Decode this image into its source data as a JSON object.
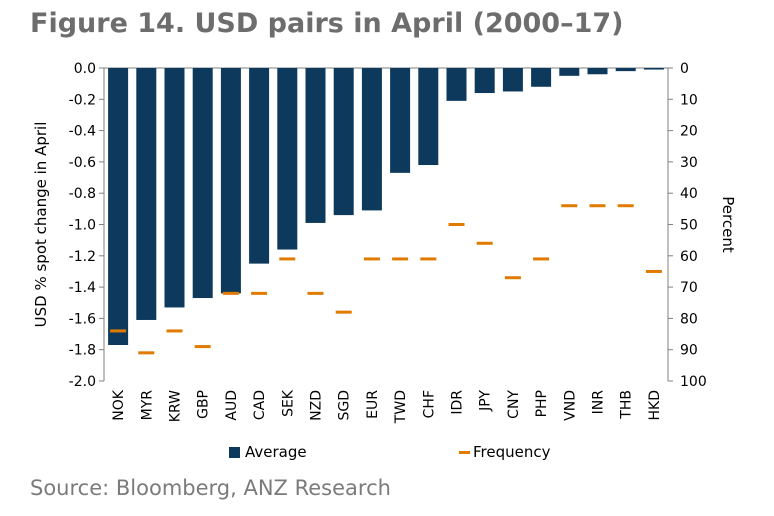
{
  "figure": {
    "title": "Figure 14.   USD pairs in April (2000–17)",
    "source": "Source: Bloomberg, ANZ Research"
  },
  "chart_data": {
    "type": "bar",
    "title": "Figure 14.   USD pairs in April (2000–17)",
    "categories": [
      "NOK",
      "MYR",
      "KRW",
      "GBP",
      "AUD",
      "CAD",
      "SEK",
      "NZD",
      "SGD",
      "EUR",
      "TWD",
      "CHF",
      "IDR",
      "JPY",
      "CNY",
      "PHP",
      "VND",
      "INR",
      "THB",
      "HKD"
    ],
    "series": [
      {
        "name": "Average",
        "type": "bar",
        "axis": "left",
        "color": "#0d3a5c",
        "values": [
          -1.77,
          -1.61,
          -1.53,
          -1.47,
          -1.44,
          -1.25,
          -1.16,
          -0.99,
          -0.94,
          -0.91,
          -0.67,
          -0.62,
          -0.21,
          -0.16,
          -0.15,
          -0.12,
          -0.05,
          -0.04,
          -0.02,
          -0.01
        ]
      },
      {
        "name": "Frequency",
        "type": "marker",
        "axis": "right",
        "color": "#e07b00",
        "values": [
          84,
          91,
          84,
          89,
          72,
          72,
          61,
          72,
          78,
          61,
          61,
          61,
          50,
          56,
          67,
          61,
          44,
          44,
          44,
          65
        ]
      }
    ],
    "ylabel_left": "USD % spot change in April",
    "ylabel_right": "Percent",
    "ylim_left": [
      -2.0,
      0.0
    ],
    "ylim_right": [
      0,
      100
    ],
    "yticks_left": [
      "0.0",
      "-0.2",
      "-0.4",
      "-0.6",
      "-0.8",
      "-1.0",
      "-1.2",
      "-1.4",
      "-1.6",
      "-1.8",
      "-2.0"
    ],
    "yticks_right": [
      "0",
      "10",
      "20",
      "30",
      "40",
      "50",
      "60",
      "70",
      "80",
      "90",
      "100"
    ],
    "legend": [
      {
        "label": "Average",
        "marker": "square",
        "color": "#0d3a5c"
      },
      {
        "label": "Frequency",
        "marker": "dash",
        "color": "#e07b00"
      }
    ],
    "legend_position": "bottom",
    "grid": false
  }
}
